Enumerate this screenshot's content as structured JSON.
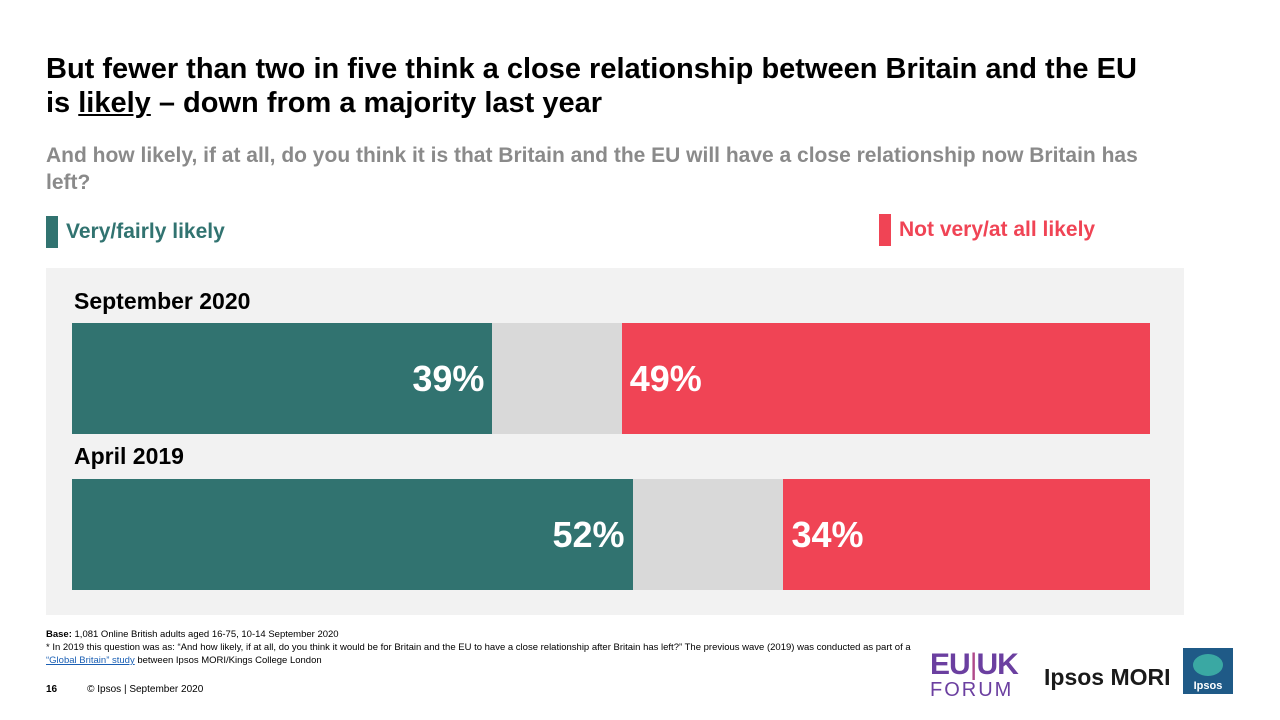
{
  "title": {
    "part1": "But fewer than two in five think a close relationship between Britain and the EU is ",
    "underlined": "likely",
    "part2": " – down from a majority last year"
  },
  "subtitle": "And how likely, if at all, do you think it is that Britain and the EU will have a close relationship now Britain has left?",
  "legend": {
    "likely": "Very/fairly likely",
    "notlikely": "Not very/at all likely"
  },
  "colors": {
    "likely": "#317370",
    "neutral": "#d9d9d9",
    "notlikely": "#f04455"
  },
  "chart_data": {
    "type": "bar",
    "orientation": "horizontal-stacked",
    "categories": [
      "September 2020",
      "April 2019"
    ],
    "series": [
      {
        "name": "Very/fairly likely",
        "values": [
          39,
          52
        ],
        "labels": [
          "39%",
          "52%"
        ]
      },
      {
        "name": "",
        "values": [
          12,
          14
        ],
        "labels": [
          "",
          ""
        ]
      },
      {
        "name": "Not very/at all likely",
        "values": [
          49,
          34
        ],
        "labels": [
          "49%",
          "34%"
        ]
      }
    ],
    "xlim": [
      0,
      100
    ],
    "legend_position": "top"
  },
  "footnote": {
    "base_label": "Base:",
    "base_text": "1,081 Online British adults aged 16-75, 10-14 September 2020",
    "note_text": "* In 2019 this question was as: “And how likely, if at all, do you think it would be for Britain and the EU to have a close relationship after Britain has left?” The previous wave (2019) was conducted as part of a ",
    "note_link": "“Global Britain” study",
    "note_tail": " between Ipsos MORI/Kings College London"
  },
  "footer": {
    "page": "16",
    "copyright": "© Ipsos | September 2020"
  },
  "logos": {
    "euuk_top_a": "EU",
    "euuk_sep": "|",
    "euuk_top_b": "UK",
    "euuk_bottom": "FORUM",
    "ipsos_mori": "Ipsos MORI",
    "ipsos": "Ipsos"
  }
}
